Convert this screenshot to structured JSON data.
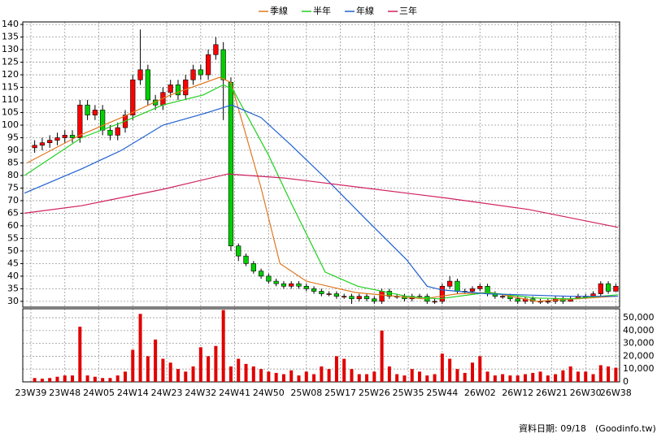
{
  "chart_data": [
    {
      "type": "candlestick",
      "x": [
        1,
        3,
        5,
        7,
        9,
        11,
        13,
        15,
        17,
        19,
        21,
        23,
        25,
        27,
        29,
        31,
        33,
        35,
        37,
        39,
        41,
        43,
        45,
        47,
        49,
        51,
        53,
        55,
        57,
        59,
        61,
        63,
        65,
        67,
        69,
        71,
        73,
        75,
        77,
        79,
        81,
        83,
        85,
        87,
        89,
        91,
        93,
        95,
        97,
        99,
        101,
        103,
        105,
        107,
        109,
        111,
        113,
        115,
        117,
        119,
        121,
        123,
        125,
        127,
        129,
        131,
        133,
        135,
        137,
        139,
        141,
        143,
        145,
        147,
        149,
        151,
        153,
        155
      ],
      "open": [
        91,
        92,
        93,
        94,
        95,
        96,
        95,
        108,
        104,
        106,
        98,
        96,
        99,
        104,
        118,
        122,
        110,
        108,
        113,
        116,
        112,
        118,
        122,
        120,
        128,
        130,
        117,
        52,
        48,
        45,
        42,
        40,
        38,
        37,
        36,
        37,
        36,
        35,
        34,
        33,
        33,
        32,
        32,
        31,
        32,
        31,
        30,
        34,
        32,
        32,
        31,
        32,
        32,
        30,
        30,
        36,
        38,
        34,
        34,
        35,
        36,
        33,
        32,
        32,
        31,
        30,
        31,
        30,
        30,
        30,
        31,
        30,
        31,
        32,
        32,
        33,
        37,
        34
      ],
      "high": [
        94,
        95,
        96,
        97,
        98,
        98,
        110,
        110,
        108,
        108,
        100,
        101,
        106,
        120,
        138,
        124,
        112,
        115,
        118,
        118,
        120,
        124,
        124,
        130,
        135,
        133,
        119,
        53,
        49,
        46,
        43,
        41,
        39,
        38,
        38,
        38,
        37,
        36,
        35,
        34,
        34,
        33,
        33,
        33,
        33,
        32,
        35,
        35,
        33,
        33,
        33,
        33,
        33,
        31,
        37,
        40,
        39,
        35,
        36,
        37,
        37,
        34,
        33,
        33,
        32,
        32,
        32,
        31,
        31,
        32,
        32,
        32,
        33,
        33,
        34,
        38,
        38,
        37
      ],
      "low": [
        89,
        90,
        91,
        92,
        93,
        93,
        93,
        102,
        102,
        96,
        94,
        94,
        97,
        102,
        116,
        108,
        106,
        106,
        111,
        110,
        110,
        116,
        118,
        118,
        126,
        102,
        50,
        46,
        44,
        41,
        39,
        37,
        36,
        35,
        35,
        35,
        34,
        33,
        32,
        32,
        31,
        31,
        29,
        30,
        30,
        29,
        29,
        31,
        31,
        30,
        30,
        31,
        29,
        29,
        29,
        35,
        33,
        33,
        33,
        34,
        32,
        31,
        31,
        30,
        29,
        29,
        29,
        29,
        29,
        29,
        29,
        30,
        31,
        31,
        32,
        32,
        33,
        34
      ],
      "close": [
        92,
        93,
        94,
        95,
        96,
        95,
        108,
        104,
        106,
        98,
        96,
        99,
        104,
        118,
        122,
        110,
        108,
        113,
        116,
        112,
        118,
        122,
        120,
        128,
        132,
        118,
        52,
        48,
        45,
        42,
        40,
        38,
        37,
        36,
        37,
        36,
        35,
        34,
        33,
        33,
        32,
        32,
        31,
        32,
        31,
        30,
        34,
        32,
        32,
        31,
        32,
        32,
        30,
        30,
        36,
        38,
        34,
        34,
        35,
        36,
        33,
        32,
        32,
        31,
        30,
        31,
        30,
        30,
        30,
        31,
        30,
        31,
        32,
        32,
        33,
        37,
        34,
        36
      ],
      "up_color": "#ff0000",
      "down_color": "#00d000",
      "series": [
        {
          "name": "季線",
          "color": "#e07820",
          "x": [
            -1,
            13,
            24,
            37,
            50,
            53,
            61,
            66,
            73,
            86,
            104,
            113,
            122,
            134,
            155
          ],
          "values": [
            85,
            96,
            103,
            112,
            119,
            117,
            75,
            45,
            38,
            33.5,
            31,
            33,
            33.5,
            30,
            32
          ]
        },
        {
          "name": "半年",
          "color": "#20d020",
          "x": [
            -1.7,
            13.4,
            24,
            35,
            45.7,
            51,
            53.6,
            63,
            69,
            78,
            86.6,
            99.6,
            108,
            121,
            134,
            143,
            155.6
          ],
          "values": [
            80,
            95,
            101,
            108,
            112,
            116,
            114,
            88,
            69,
            41.6,
            36,
            32,
            31,
            33.5,
            31.3,
            31,
            32.6
          ]
        },
        {
          "name": "年線",
          "color": "#2060d0",
          "x": [
            -1.7,
            13.4,
            24,
            35,
            45.7,
            53.2,
            61,
            69,
            78,
            88.8,
            99.6,
            105,
            109,
            121,
            143,
            155.6
          ],
          "values": [
            73,
            82.6,
            90,
            100,
            104.5,
            108,
            103,
            92,
            79,
            62.6,
            46.5,
            36,
            34.5,
            33,
            32,
            32
          ]
        },
        {
          "name": "三年",
          "color": "#d02060",
          "x": [
            -1.7,
            13.4,
            35,
            52.2,
            67.2,
            88.8,
            110.3,
            131.9,
            155.6
          ],
          "values": [
            65,
            68,
            74.5,
            80.6,
            79,
            75,
            71,
            66.5,
            59.4
          ]
        }
      ],
      "ylim": [
        27.7,
        141
      ],
      "yticks": [
        30,
        35,
        40,
        45,
        50,
        55,
        60,
        65,
        70,
        75,
        80,
        85,
        90,
        95,
        100,
        105,
        110,
        115,
        120,
        125,
        130,
        135,
        140
      ],
      "xlim": [
        -2.15,
        156
      ],
      "grid": true,
      "legend": "top"
    },
    {
      "type": "bar",
      "x": [
        1,
        3,
        5,
        7,
        9,
        11,
        13,
        15,
        17,
        19,
        21,
        23,
        25,
        27,
        29,
        31,
        33,
        35,
        37,
        39,
        41,
        43,
        45,
        47,
        49,
        51,
        53,
        55,
        57,
        59,
        61,
        63,
        65,
        67,
        69,
        71,
        73,
        75,
        77,
        79,
        81,
        83,
        85,
        87,
        89,
        91,
        93,
        95,
        97,
        99,
        101,
        103,
        105,
        107,
        109,
        111,
        113,
        115,
        117,
        119,
        121,
        123,
        125,
        127,
        129,
        131,
        133,
        135,
        137,
        139,
        141,
        143,
        145,
        147,
        149,
        151,
        153,
        155
      ],
      "values": [
        3000,
        2500,
        3000,
        4000,
        5000,
        5000,
        43000,
        5000,
        4000,
        3000,
        3000,
        5000,
        8000,
        25000,
        53000,
        20000,
        33000,
        18000,
        15000,
        10000,
        8000,
        12000,
        27000,
        20000,
        28000,
        56000,
        12000,
        18000,
        14000,
        12000,
        10000,
        8000,
        7000,
        6000,
        9000,
        5000,
        8000,
        6000,
        12000,
        10000,
        20000,
        18000,
        10000,
        6000,
        6000,
        8000,
        40000,
        12000,
        6000,
        5000,
        10000,
        8000,
        5000,
        6000,
        22000,
        18000,
        10000,
        7000,
        15000,
        20000,
        8000,
        5000,
        6000,
        5000,
        5000,
        6000,
        7000,
        8000,
        5000,
        6000,
        9000,
        12000,
        8000,
        8000,
        6000,
        13000,
        12000,
        11000
      ],
      "color": "#e00000",
      "ylim": [
        0,
        57000
      ],
      "yticks": [
        0,
        {
          "value": 10000,
          "label": "10,000"
        },
        {
          "value": 20000,
          "label": "20,000"
        },
        {
          "value": 30000,
          "label": "30,000"
        },
        {
          "value": 40000,
          "label": "40,000"
        },
        {
          "value": 50000,
          "label": "50,000"
        }
      ],
      "xlim": [
        -2.15,
        156
      ],
      "xticks": [
        {
          "value": 0,
          "label": "23W39"
        },
        {
          "value": 9,
          "label": "23W48"
        },
        {
          "value": 18,
          "label": "24W05"
        },
        {
          "value": 27,
          "label": "24W14"
        },
        {
          "value": 36,
          "label": "24W23"
        },
        {
          "value": 45,
          "label": "24W32"
        },
        {
          "value": 54,
          "label": "24W41"
        },
        {
          "value": 63,
          "label": "24W50"
        },
        {
          "value": 73,
          "label": "25W08"
        },
        {
          "value": 82,
          "label": "25W17"
        },
        {
          "value": 91,
          "label": "25W26"
        },
        {
          "value": 100,
          "label": "25W35"
        },
        {
          "value": 109,
          "label": "25W44"
        },
        {
          "value": 119,
          "label": "26W02"
        },
        {
          "value": 129,
          "label": "26W12"
        },
        {
          "value": 138,
          "label": "26W21"
        },
        {
          "value": 147,
          "label": "26W30"
        },
        {
          "value": 155,
          "label": "26W38"
        }
      ],
      "grid": true,
      "note": "資料日期: 09/18",
      "source": "(Goodinfo.tw)"
    }
  ]
}
